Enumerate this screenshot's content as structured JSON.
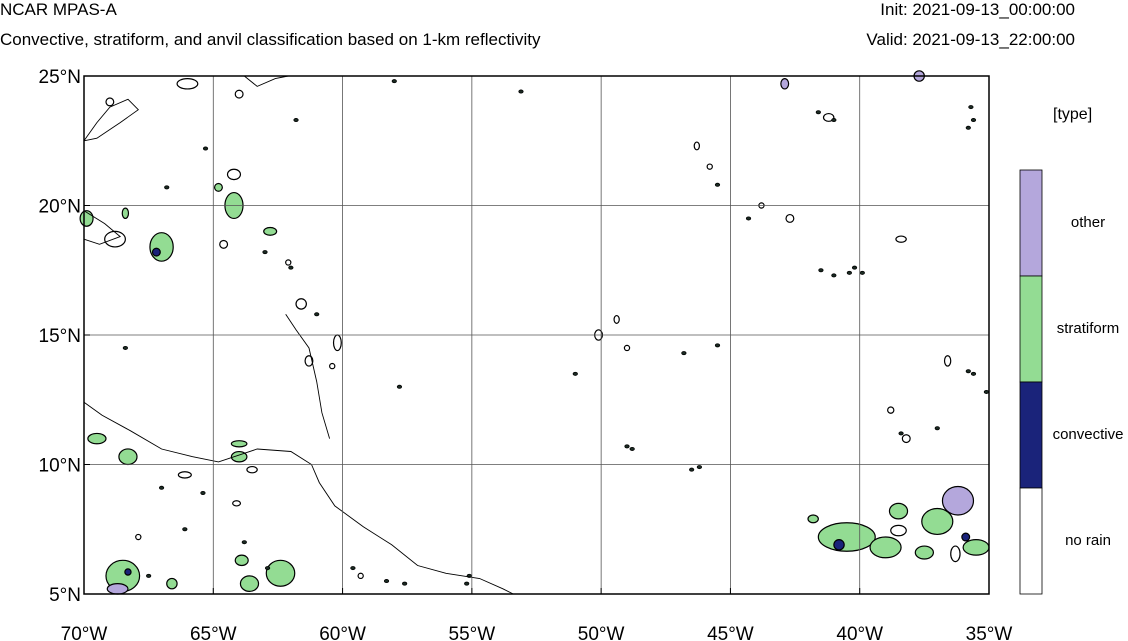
{
  "header": {
    "title": "NCAR MPAS-A",
    "subtitle": "Convective, stratiform, and anvil classification based on 1-km reflectivity",
    "init": "Init: 2021-09-13_00:00:00",
    "valid": "Valid: 2021-09-13_22:00:00"
  },
  "chart_data": {
    "type": "map",
    "projection": "cylindrical equidistant",
    "lon_range": [
      -70,
      -35
    ],
    "lat_range": [
      5,
      25
    ],
    "lon_ticks": [
      -70,
      -65,
      -60,
      -55,
      -50,
      -45,
      -40,
      -35
    ],
    "lat_ticks": [
      5,
      10,
      15,
      20,
      25
    ],
    "lon_tick_labels": [
      "70°W",
      "65°W",
      "60°W",
      "55°W",
      "50°W",
      "45°W",
      "40°W",
      "35°W"
    ],
    "lat_tick_labels": [
      "5°N",
      "10°N",
      "15°N",
      "20°N",
      "25°N"
    ],
    "grid": true,
    "legend": {
      "title": "[type]",
      "placement": "right",
      "categories": [
        {
          "label": "other",
          "color": "#b4a7dc"
        },
        {
          "label": "stratiform",
          "color": "#93dc93"
        },
        {
          "label": "convective",
          "color": "#1a237a"
        },
        {
          "label": "no rain",
          "color": "#ffffff"
        }
      ]
    },
    "coastlines": [
      [
        [
          -70,
          22.5
        ],
        [
          -69.5,
          23.2
        ],
        [
          -69.0,
          23.8
        ],
        [
          -68.3,
          24.1
        ],
        [
          -67.9,
          23.7
        ],
        [
          -68.6,
          23.2
        ],
        [
          -69.5,
          22.6
        ],
        [
          -70,
          22.5
        ]
      ],
      [
        [
          -70,
          19.8
        ],
        [
          -69.2,
          19.3
        ],
        [
          -68.6,
          18.8
        ],
        [
          -69.4,
          18.5
        ],
        [
          -70,
          18.7
        ]
      ],
      [
        [
          -70,
          12.4
        ],
        [
          -69.3,
          11.9
        ],
        [
          -68.2,
          11.3
        ],
        [
          -67.0,
          10.6
        ],
        [
          -65.8,
          10.3
        ],
        [
          -64.8,
          10.1
        ],
        [
          -63.3,
          10.6
        ],
        [
          -62.0,
          10.5
        ],
        [
          -61.2,
          10.0
        ],
        [
          -60.9,
          9.3
        ],
        [
          -60.3,
          8.4
        ],
        [
          -59.2,
          7.6
        ],
        [
          -58.1,
          6.9
        ],
        [
          -57.1,
          6.1
        ],
        [
          -56.0,
          5.8
        ],
        [
          -54.7,
          5.6
        ],
        [
          -53.8,
          5.2
        ],
        [
          -53.4,
          5.0
        ]
      ],
      [
        [
          -63.8,
          25.0
        ],
        [
          -63.3,
          24.6
        ],
        [
          -62.6,
          24.9
        ],
        [
          -62.1,
          25.0
        ]
      ],
      [
        [
          -62.2,
          15.8
        ],
        [
          -61.8,
          15.2
        ],
        [
          -61.3,
          14.5
        ],
        [
          -61.0,
          13.2
        ],
        [
          -60.8,
          12.0
        ],
        [
          -60.5,
          11.0
        ]
      ]
    ],
    "precip_cells": [
      {
        "lon": -69.9,
        "lat": 19.5,
        "rx": 0.25,
        "ry": 0.3,
        "type": "stratiform"
      },
      {
        "lon": -68.4,
        "lat": 19.7,
        "rx": 0.12,
        "ry": 0.2,
        "type": "stratiform"
      },
      {
        "lon": -67.0,
        "lat": 18.4,
        "rx": 0.45,
        "ry": 0.55,
        "type": "stratiform"
      },
      {
        "lon": -67.2,
        "lat": 18.2,
        "rx": 0.15,
        "ry": 0.15,
        "type": "convective"
      },
      {
        "lon": -64.2,
        "lat": 20.0,
        "rx": 0.35,
        "ry": 0.5,
        "type": "stratiform"
      },
      {
        "lon": -64.8,
        "lat": 20.7,
        "rx": 0.15,
        "ry": 0.15,
        "type": "stratiform"
      },
      {
        "lon": -62.8,
        "lat": 19.0,
        "rx": 0.25,
        "ry": 0.15,
        "type": "stratiform"
      },
      {
        "lon": -69.5,
        "lat": 11.0,
        "rx": 0.35,
        "ry": 0.2,
        "type": "stratiform"
      },
      {
        "lon": -68.3,
        "lat": 10.3,
        "rx": 0.35,
        "ry": 0.3,
        "type": "stratiform"
      },
      {
        "lon": -64.0,
        "lat": 10.8,
        "rx": 0.3,
        "ry": 0.12,
        "type": "stratiform"
      },
      {
        "lon": -64.0,
        "lat": 10.3,
        "rx": 0.3,
        "ry": 0.2,
        "type": "stratiform"
      },
      {
        "lon": -68.5,
        "lat": 5.7,
        "rx": 0.65,
        "ry": 0.6,
        "type": "stratiform"
      },
      {
        "lon": -68.7,
        "lat": 5.2,
        "rx": 0.4,
        "ry": 0.2,
        "type": "other"
      },
      {
        "lon": -68.3,
        "lat": 5.85,
        "rx": 0.12,
        "ry": 0.12,
        "type": "convective"
      },
      {
        "lon": -66.6,
        "lat": 5.4,
        "rx": 0.2,
        "ry": 0.2,
        "type": "stratiform"
      },
      {
        "lon": -62.4,
        "lat": 5.8,
        "rx": 0.55,
        "ry": 0.5,
        "type": "stratiform"
      },
      {
        "lon": -63.6,
        "lat": 5.4,
        "rx": 0.35,
        "ry": 0.3,
        "type": "stratiform"
      },
      {
        "lon": -63.9,
        "lat": 6.3,
        "rx": 0.25,
        "ry": 0.2,
        "type": "stratiform"
      },
      {
        "lon": -40.5,
        "lat": 7.2,
        "rx": 1.1,
        "ry": 0.55,
        "type": "stratiform"
      },
      {
        "lon": -39.0,
        "lat": 6.8,
        "rx": 0.6,
        "ry": 0.4,
        "type": "stratiform"
      },
      {
        "lon": -40.8,
        "lat": 6.9,
        "rx": 0.2,
        "ry": 0.2,
        "type": "convective"
      },
      {
        "lon": -37.0,
        "lat": 7.8,
        "rx": 0.6,
        "ry": 0.5,
        "type": "stratiform"
      },
      {
        "lon": -36.2,
        "lat": 8.6,
        "rx": 0.6,
        "ry": 0.55,
        "type": "other"
      },
      {
        "lon": -37.5,
        "lat": 6.6,
        "rx": 0.35,
        "ry": 0.25,
        "type": "stratiform"
      },
      {
        "lon": -35.5,
        "lat": 6.8,
        "rx": 0.5,
        "ry": 0.3,
        "type": "stratiform"
      },
      {
        "lon": -35.9,
        "lat": 7.2,
        "rx": 0.15,
        "ry": 0.15,
        "type": "convective"
      },
      {
        "lon": -38.5,
        "lat": 8.2,
        "rx": 0.35,
        "ry": 0.3,
        "type": "stratiform"
      },
      {
        "lon": -41.8,
        "lat": 7.9,
        "rx": 0.2,
        "ry": 0.15,
        "type": "stratiform"
      },
      {
        "lon": -37.7,
        "lat": 25.0,
        "rx": 0.2,
        "ry": 0.2,
        "type": "other"
      },
      {
        "lon": -42.9,
        "lat": 24.7,
        "rx": 0.15,
        "ry": 0.2,
        "type": "other"
      }
    ],
    "contour_outlines": [
      {
        "lon": -38.5,
        "lat": 7.45,
        "rx": 0.3,
        "ry": 0.2
      },
      {
        "lon": -36.3,
        "lat": 6.55,
        "rx": 0.18,
        "ry": 0.3
      },
      {
        "lon": -69.0,
        "lat": 24.0,
        "rx": 0.15,
        "ry": 0.15
      },
      {
        "lon": -66.0,
        "lat": 24.7,
        "rx": 0.4,
        "ry": 0.2
      },
      {
        "lon": -64.0,
        "lat": 24.3,
        "rx": 0.15,
        "ry": 0.15
      },
      {
        "lon": -68.8,
        "lat": 18.7,
        "rx": 0.4,
        "ry": 0.3
      },
      {
        "lon": -64.2,
        "lat": 21.2,
        "rx": 0.25,
        "ry": 0.2
      },
      {
        "lon": -61.6,
        "lat": 16.2,
        "rx": 0.2,
        "ry": 0.2
      },
      {
        "lon": -61.3,
        "lat": 14.0,
        "rx": 0.15,
        "ry": 0.2
      },
      {
        "lon": -60.2,
        "lat": 14.7,
        "rx": 0.15,
        "ry": 0.3
      },
      {
        "lon": -60.4,
        "lat": 13.8,
        "rx": 0.1,
        "ry": 0.1
      },
      {
        "lon": -62.1,
        "lat": 17.8,
        "rx": 0.1,
        "ry": 0.1
      },
      {
        "lon": -64.6,
        "lat": 18.5,
        "rx": 0.15,
        "ry": 0.15
      },
      {
        "lon": -43.8,
        "lat": 20.0,
        "rx": 0.1,
        "ry": 0.1
      },
      {
        "lon": -42.7,
        "lat": 19.5,
        "rx": 0.15,
        "ry": 0.15
      },
      {
        "lon": -45.8,
        "lat": 21.5,
        "rx": 0.1,
        "ry": 0.1
      },
      {
        "lon": -46.3,
        "lat": 22.3,
        "rx": 0.1,
        "ry": 0.15
      },
      {
        "lon": -50.1,
        "lat": 15.0,
        "rx": 0.15,
        "ry": 0.2
      },
      {
        "lon": -49.4,
        "lat": 15.6,
        "rx": 0.1,
        "ry": 0.15
      },
      {
        "lon": -49.0,
        "lat": 14.5,
        "rx": 0.1,
        "ry": 0.1
      },
      {
        "lon": -41.2,
        "lat": 23.4,
        "rx": 0.2,
        "ry": 0.15
      },
      {
        "lon": -38.4,
        "lat": 18.7,
        "rx": 0.2,
        "ry": 0.12
      },
      {
        "lon": -38.2,
        "lat": 11.0,
        "rx": 0.15,
        "ry": 0.15
      },
      {
        "lon": -38.8,
        "lat": 12.1,
        "rx": 0.12,
        "ry": 0.12
      },
      {
        "lon": -36.6,
        "lat": 14.0,
        "rx": 0.12,
        "ry": 0.2
      },
      {
        "lon": -64.1,
        "lat": 8.5,
        "rx": 0.15,
        "ry": 0.1
      },
      {
        "lon": -67.9,
        "lat": 7.2,
        "rx": 0.1,
        "ry": 0.1
      },
      {
        "lon": -66.1,
        "lat": 9.6,
        "rx": 0.25,
        "ry": 0.12
      },
      {
        "lon": -63.5,
        "lat": 9.8,
        "rx": 0.2,
        "ry": 0.12
      },
      {
        "lon": -59.3,
        "lat": 5.7,
        "rx": 0.1,
        "ry": 0.1
      }
    ],
    "dots": [
      {
        "lon": -68.4,
        "lat": 14.5
      },
      {
        "lon": -57.8,
        "lat": 13.0
      },
      {
        "lon": -53.1,
        "lat": 24.4
      },
      {
        "lon": -58.0,
        "lat": 24.8
      },
      {
        "lon": -51.0,
        "lat": 13.5
      },
      {
        "lon": -46.5,
        "lat": 9.8
      },
      {
        "lon": -46.2,
        "lat": 9.9
      },
      {
        "lon": -49.0,
        "lat": 10.7
      },
      {
        "lon": -48.8,
        "lat": 10.6
      },
      {
        "lon": -41.5,
        "lat": 17.5
      },
      {
        "lon": -41.0,
        "lat": 17.3
      },
      {
        "lon": -40.4,
        "lat": 17.4
      },
      {
        "lon": -39.9,
        "lat": 17.4
      },
      {
        "lon": -40.2,
        "lat": 17.6
      },
      {
        "lon": -35.6,
        "lat": 23.3
      },
      {
        "lon": -35.8,
        "lat": 23.0
      },
      {
        "lon": -35.7,
        "lat": 23.8
      },
      {
        "lon": -41.6,
        "lat": 23.6
      },
      {
        "lon": -41.0,
        "lat": 23.3
      },
      {
        "lon": -44.3,
        "lat": 19.5
      },
      {
        "lon": -45.5,
        "lat": 20.8
      },
      {
        "lon": -35.6,
        "lat": 13.5
      },
      {
        "lon": -35.8,
        "lat": 13.6
      },
      {
        "lon": -35.1,
        "lat": 12.8
      },
      {
        "lon": -37.0,
        "lat": 11.4
      },
      {
        "lon": -38.4,
        "lat": 11.2
      },
      {
        "lon": -46.8,
        "lat": 14.3
      },
      {
        "lon": -45.5,
        "lat": 14.6
      },
      {
        "lon": -55.2,
        "lat": 5.4
      },
      {
        "lon": -55.1,
        "lat": 5.7
      },
      {
        "lon": -58.3,
        "lat": 5.5
      },
      {
        "lon": -59.6,
        "lat": 6.0
      },
      {
        "lon": -57.6,
        "lat": 5.4
      },
      {
        "lon": -63.8,
        "lat": 7.0
      },
      {
        "lon": -65.4,
        "lat": 8.9
      },
      {
        "lon": -67.0,
        "lat": 9.1
      },
      {
        "lon": -66.1,
        "lat": 7.5
      },
      {
        "lon": -62.9,
        "lat": 6.0
      },
      {
        "lon": -67.5,
        "lat": 5.7
      },
      {
        "lon": -66.8,
        "lat": 20.7
      },
      {
        "lon": -65.3,
        "lat": 22.2
      },
      {
        "lon": -61.8,
        "lat": 23.3
      },
      {
        "lon": -61.0,
        "lat": 15.8
      },
      {
        "lon": -62.0,
        "lat": 17.6
      },
      {
        "lon": -63.0,
        "lat": 18.2
      }
    ]
  }
}
